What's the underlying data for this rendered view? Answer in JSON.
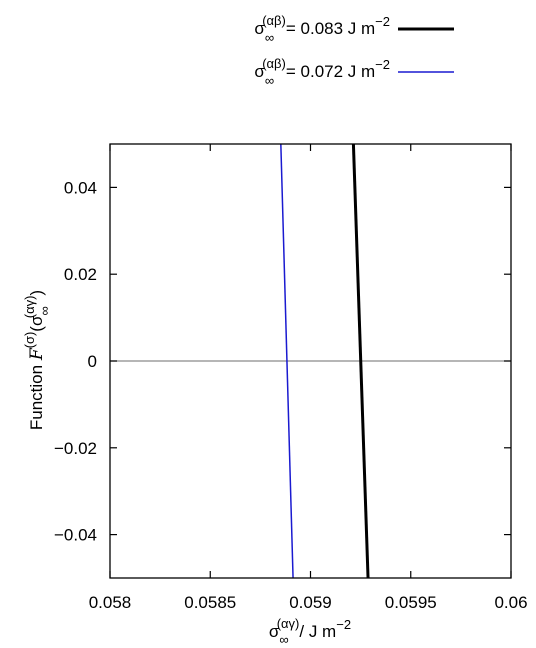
{
  "chart_data": {
    "type": "line",
    "title": "",
    "xlabel": {
      "sigma": "σ",
      "sub": "∞",
      "sup": "(αγ)",
      "unit": "/ J m",
      "unit_exp": "−2"
    },
    "ylabel": {
      "prefix": "Function ",
      "F": "F",
      "F_sup": "(σ)",
      "open": "(",
      "sigma": "σ",
      "sub": "∞",
      "sup": "(αγ)",
      "close": ")"
    },
    "xlim": [
      0.058,
      0.06
    ],
    "ylim": [
      -0.05,
      0.05
    ],
    "xticks": [
      0.058,
      0.0585,
      0.059,
      0.0595,
      0.06
    ],
    "xtick_labels": [
      "0.058",
      "0.0585",
      "0.059",
      "0.0595",
      "0.06"
    ],
    "yticks": [
      -0.04,
      -0.02,
      0,
      0.02,
      0.04
    ],
    "ytick_labels": [
      "−0.04",
      "−0.02",
      "0",
      "0.02",
      "0.04"
    ],
    "zero_line": true,
    "grid": false,
    "legend_position": "top-right, above plot",
    "series": [
      {
        "name": "σ∞(αβ)= 0.083 J m−2",
        "legend": {
          "sigma": "σ",
          "sub": "∞",
          "sup": "(αβ)",
          "rest": "= 0.083 J m",
          "exp": "−2"
        },
        "color": "#000000",
        "width": 3,
        "x": [
          0.059214,
          0.059287
        ],
        "y": [
          0.05,
          -0.05
        ]
      },
      {
        "name": "σ∞(αβ)= 0.072 J m−2",
        "legend": {
          "sigma": "σ",
          "sub": "∞",
          "sup": "(αβ)",
          "rest": "= 0.072 J m",
          "exp": "−2"
        },
        "color": "#1a1ad0",
        "width": 1.5,
        "x": [
          0.058852,
          0.058913
        ],
        "y": [
          0.05,
          -0.05
        ]
      }
    ]
  }
}
